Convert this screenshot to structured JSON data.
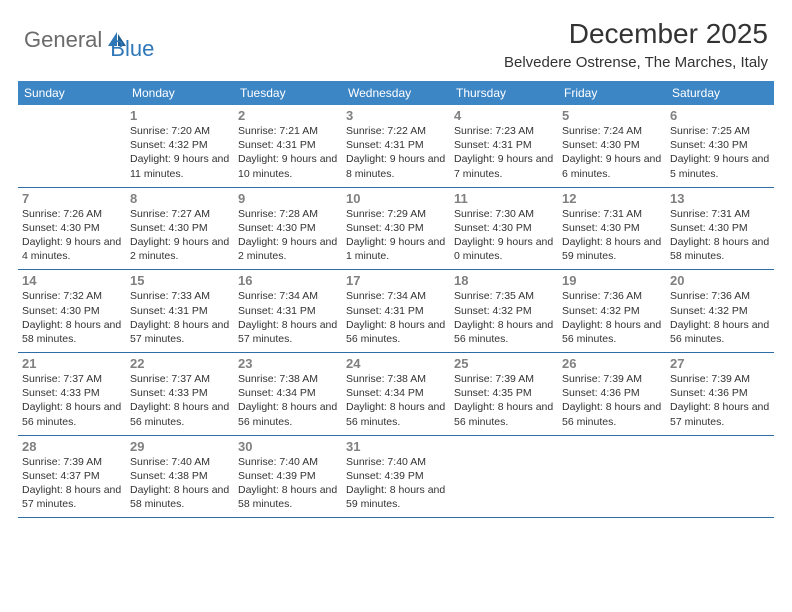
{
  "logo": {
    "text1": "General",
    "text2": "Blue"
  },
  "title": "December 2025",
  "location": "Belvedere Ostrense, The Marches, Italy",
  "colors": {
    "header_bg": "#3d86c6",
    "header_text": "#ffffff",
    "row_border": "#2f6da6",
    "day_num": "#808080",
    "body_text": "#333333",
    "logo_gray": "#6b6b6b",
    "logo_blue": "#2f78b8",
    "page_bg": "#ffffff"
  },
  "typography": {
    "title_fontsize": 28,
    "location_fontsize": 15,
    "weekday_fontsize": 12,
    "daynum_fontsize": 13,
    "info_fontsize": 10.5,
    "logo_fontsize": 22
  },
  "weekdays": [
    "Sunday",
    "Monday",
    "Tuesday",
    "Wednesday",
    "Thursday",
    "Friday",
    "Saturday"
  ],
  "weeks": [
    [
      {
        "num": "",
        "sunrise": "",
        "sunset": "",
        "daylight": ""
      },
      {
        "num": "1",
        "sunrise": "Sunrise: 7:20 AM",
        "sunset": "Sunset: 4:32 PM",
        "daylight": "Daylight: 9 hours and 11 minutes."
      },
      {
        "num": "2",
        "sunrise": "Sunrise: 7:21 AM",
        "sunset": "Sunset: 4:31 PM",
        "daylight": "Daylight: 9 hours and 10 minutes."
      },
      {
        "num": "3",
        "sunrise": "Sunrise: 7:22 AM",
        "sunset": "Sunset: 4:31 PM",
        "daylight": "Daylight: 9 hours and 8 minutes."
      },
      {
        "num": "4",
        "sunrise": "Sunrise: 7:23 AM",
        "sunset": "Sunset: 4:31 PM",
        "daylight": "Daylight: 9 hours and 7 minutes."
      },
      {
        "num": "5",
        "sunrise": "Sunrise: 7:24 AM",
        "sunset": "Sunset: 4:30 PM",
        "daylight": "Daylight: 9 hours and 6 minutes."
      },
      {
        "num": "6",
        "sunrise": "Sunrise: 7:25 AM",
        "sunset": "Sunset: 4:30 PM",
        "daylight": "Daylight: 9 hours and 5 minutes."
      }
    ],
    [
      {
        "num": "7",
        "sunrise": "Sunrise: 7:26 AM",
        "sunset": "Sunset: 4:30 PM",
        "daylight": "Daylight: 9 hours and 4 minutes."
      },
      {
        "num": "8",
        "sunrise": "Sunrise: 7:27 AM",
        "sunset": "Sunset: 4:30 PM",
        "daylight": "Daylight: 9 hours and 2 minutes."
      },
      {
        "num": "9",
        "sunrise": "Sunrise: 7:28 AM",
        "sunset": "Sunset: 4:30 PM",
        "daylight": "Daylight: 9 hours and 2 minutes."
      },
      {
        "num": "10",
        "sunrise": "Sunrise: 7:29 AM",
        "sunset": "Sunset: 4:30 PM",
        "daylight": "Daylight: 9 hours and 1 minute."
      },
      {
        "num": "11",
        "sunrise": "Sunrise: 7:30 AM",
        "sunset": "Sunset: 4:30 PM",
        "daylight": "Daylight: 9 hours and 0 minutes."
      },
      {
        "num": "12",
        "sunrise": "Sunrise: 7:31 AM",
        "sunset": "Sunset: 4:30 PM",
        "daylight": "Daylight: 8 hours and 59 minutes."
      },
      {
        "num": "13",
        "sunrise": "Sunrise: 7:31 AM",
        "sunset": "Sunset: 4:30 PM",
        "daylight": "Daylight: 8 hours and 58 minutes."
      }
    ],
    [
      {
        "num": "14",
        "sunrise": "Sunrise: 7:32 AM",
        "sunset": "Sunset: 4:30 PM",
        "daylight": "Daylight: 8 hours and 58 minutes."
      },
      {
        "num": "15",
        "sunrise": "Sunrise: 7:33 AM",
        "sunset": "Sunset: 4:31 PM",
        "daylight": "Daylight: 8 hours and 57 minutes."
      },
      {
        "num": "16",
        "sunrise": "Sunrise: 7:34 AM",
        "sunset": "Sunset: 4:31 PM",
        "daylight": "Daylight: 8 hours and 57 minutes."
      },
      {
        "num": "17",
        "sunrise": "Sunrise: 7:34 AM",
        "sunset": "Sunset: 4:31 PM",
        "daylight": "Daylight: 8 hours and 56 minutes."
      },
      {
        "num": "18",
        "sunrise": "Sunrise: 7:35 AM",
        "sunset": "Sunset: 4:32 PM",
        "daylight": "Daylight: 8 hours and 56 minutes."
      },
      {
        "num": "19",
        "sunrise": "Sunrise: 7:36 AM",
        "sunset": "Sunset: 4:32 PM",
        "daylight": "Daylight: 8 hours and 56 minutes."
      },
      {
        "num": "20",
        "sunrise": "Sunrise: 7:36 AM",
        "sunset": "Sunset: 4:32 PM",
        "daylight": "Daylight: 8 hours and 56 minutes."
      }
    ],
    [
      {
        "num": "21",
        "sunrise": "Sunrise: 7:37 AM",
        "sunset": "Sunset: 4:33 PM",
        "daylight": "Daylight: 8 hours and 56 minutes."
      },
      {
        "num": "22",
        "sunrise": "Sunrise: 7:37 AM",
        "sunset": "Sunset: 4:33 PM",
        "daylight": "Daylight: 8 hours and 56 minutes."
      },
      {
        "num": "23",
        "sunrise": "Sunrise: 7:38 AM",
        "sunset": "Sunset: 4:34 PM",
        "daylight": "Daylight: 8 hours and 56 minutes."
      },
      {
        "num": "24",
        "sunrise": "Sunrise: 7:38 AM",
        "sunset": "Sunset: 4:34 PM",
        "daylight": "Daylight: 8 hours and 56 minutes."
      },
      {
        "num": "25",
        "sunrise": "Sunrise: 7:39 AM",
        "sunset": "Sunset: 4:35 PM",
        "daylight": "Daylight: 8 hours and 56 minutes."
      },
      {
        "num": "26",
        "sunrise": "Sunrise: 7:39 AM",
        "sunset": "Sunset: 4:36 PM",
        "daylight": "Daylight: 8 hours and 56 minutes."
      },
      {
        "num": "27",
        "sunrise": "Sunrise: 7:39 AM",
        "sunset": "Sunset: 4:36 PM",
        "daylight": "Daylight: 8 hours and 57 minutes."
      }
    ],
    [
      {
        "num": "28",
        "sunrise": "Sunrise: 7:39 AM",
        "sunset": "Sunset: 4:37 PM",
        "daylight": "Daylight: 8 hours and 57 minutes."
      },
      {
        "num": "29",
        "sunrise": "Sunrise: 7:40 AM",
        "sunset": "Sunset: 4:38 PM",
        "daylight": "Daylight: 8 hours and 58 minutes."
      },
      {
        "num": "30",
        "sunrise": "Sunrise: 7:40 AM",
        "sunset": "Sunset: 4:39 PM",
        "daylight": "Daylight: 8 hours and 58 minutes."
      },
      {
        "num": "31",
        "sunrise": "Sunrise: 7:40 AM",
        "sunset": "Sunset: 4:39 PM",
        "daylight": "Daylight: 8 hours and 59 minutes."
      },
      {
        "num": "",
        "sunrise": "",
        "sunset": "",
        "daylight": ""
      },
      {
        "num": "",
        "sunrise": "",
        "sunset": "",
        "daylight": ""
      },
      {
        "num": "",
        "sunrise": "",
        "sunset": "",
        "daylight": ""
      }
    ]
  ]
}
